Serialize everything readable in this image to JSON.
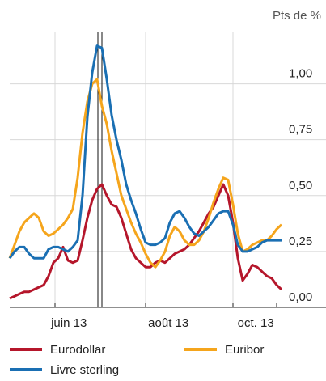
{
  "chart_data": {
    "type": "line",
    "unit_label": "Pts de %",
    "x": [
      0,
      1,
      2,
      3,
      4,
      5,
      6,
      7,
      8,
      9,
      10,
      11,
      12,
      13,
      14,
      15,
      16,
      17,
      18,
      19,
      20,
      21,
      22,
      23,
      24,
      25,
      26,
      27,
      28,
      29,
      30,
      31,
      32,
      33,
      34,
      35,
      36,
      37,
      38,
      39,
      40,
      41,
      42,
      43,
      44,
      45,
      46,
      47,
      48,
      49,
      50,
      51,
      52,
      53,
      54,
      55,
      56
    ],
    "xlim": [
      0,
      56
    ],
    "xticks": [
      {
        "value": 12.2,
        "label": "juin 13"
      },
      {
        "value": 32.7,
        "label": "août 13"
      },
      {
        "value": 50.7,
        "label": "oct. 13"
      }
    ],
    "ylim": [
      0,
      1.23
    ],
    "yticks": [
      {
        "value": 0,
        "label": "0,00"
      },
      {
        "value": 0.25,
        "label": "0,25"
      },
      {
        "value": 0.5,
        "label": "0,50"
      },
      {
        "value": 0.75,
        "label": "0,75"
      },
      {
        "value": 1,
        "label": "1,00"
      }
    ],
    "grid": true,
    "series": [
      {
        "name": "Eurodollar",
        "color": "#b5162b",
        "values": [
          0.04,
          0.05,
          0.06,
          0.07,
          0.07,
          0.08,
          0.09,
          0.1,
          0.14,
          0.2,
          0.22,
          0.27,
          0.21,
          0.2,
          0.21,
          0.3,
          0.4,
          0.48,
          0.53,
          0.55,
          0.5,
          0.46,
          0.45,
          0.4,
          0.33,
          0.26,
          0.22,
          0.2,
          0.18,
          0.18,
          0.2,
          0.21,
          0.2,
          0.22,
          0.24,
          0.25,
          0.26,
          0.28,
          0.31,
          0.34,
          0.38,
          0.42,
          0.45,
          0.5,
          0.55,
          0.5,
          0.38,
          0.22,
          0.12,
          0.15,
          0.19,
          0.18,
          0.16,
          0.14,
          0.13,
          0.1,
          0.08
        ]
      },
      {
        "name": "Euribor",
        "color": "#f5a51c",
        "values": [
          0.22,
          0.28,
          0.34,
          0.38,
          0.4,
          0.42,
          0.4,
          0.34,
          0.32,
          0.33,
          0.35,
          0.37,
          0.4,
          0.44,
          0.58,
          0.78,
          0.92,
          1.0,
          1.02,
          0.9,
          0.82,
          0.7,
          0.6,
          0.5,
          0.44,
          0.38,
          0.33,
          0.29,
          0.24,
          0.2,
          0.18,
          0.21,
          0.25,
          0.32,
          0.36,
          0.34,
          0.3,
          0.28,
          0.28,
          0.3,
          0.34,
          0.4,
          0.47,
          0.53,
          0.58,
          0.57,
          0.46,
          0.33,
          0.25,
          0.26,
          0.28,
          0.29,
          0.3,
          0.3,
          0.32,
          0.35,
          0.37
        ]
      },
      {
        "name": "Livre sterling",
        "color": "#1a6fb3",
        "values": [
          0.22,
          0.25,
          0.27,
          0.27,
          0.24,
          0.22,
          0.22,
          0.22,
          0.26,
          0.27,
          0.27,
          0.26,
          0.25,
          0.27,
          0.3,
          0.5,
          0.85,
          1.05,
          1.17,
          1.16,
          1.02,
          0.86,
          0.75,
          0.66,
          0.55,
          0.48,
          0.42,
          0.35,
          0.29,
          0.28,
          0.28,
          0.29,
          0.31,
          0.38,
          0.42,
          0.43,
          0.4,
          0.36,
          0.33,
          0.32,
          0.34,
          0.36,
          0.39,
          0.42,
          0.43,
          0.43,
          0.37,
          0.28,
          0.25,
          0.25,
          0.26,
          0.27,
          0.29,
          0.3,
          0.3,
          0.3,
          0.3
        ]
      }
    ]
  }
}
